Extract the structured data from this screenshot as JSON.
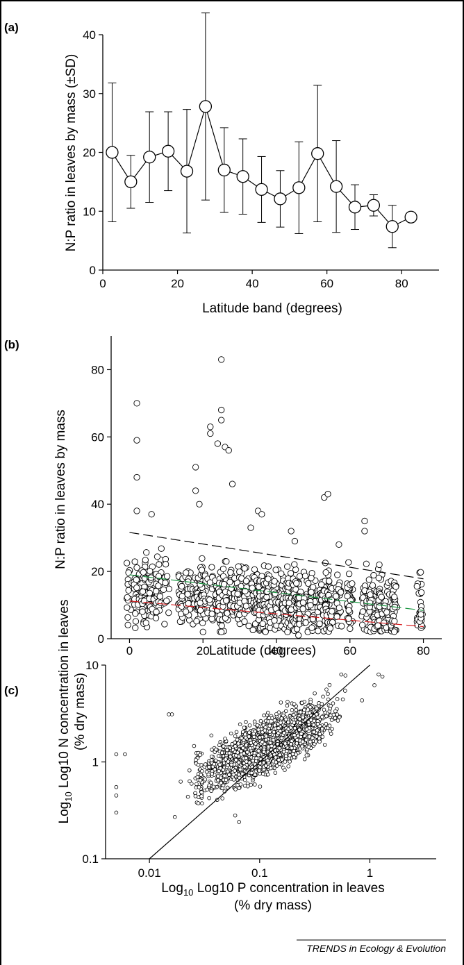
{
  "source": "TRENDS in Ecology & Evolution",
  "chart_data": [
    {
      "panel": "(a)",
      "type": "line",
      "xlabel": "Latitude band (degrees)",
      "ylabel": "N:P ratio in leaves by mass (±SD)",
      "xlim": [
        0,
        90
      ],
      "ylim": [
        0,
        40
      ],
      "xticks": [
        0,
        20,
        40,
        60,
        80
      ],
      "yticks": [
        0,
        10,
        20,
        30,
        40
      ],
      "x": [
        2.5,
        7.5,
        12.5,
        17.5,
        22.5,
        27.5,
        32.5,
        37.5,
        42.5,
        47.5,
        52.5,
        57.5,
        62.5,
        67.5,
        72.5,
        77.5,
        82.5
      ],
      "y": [
        20.0,
        15.0,
        19.2,
        20.2,
        16.8,
        27.8,
        17.0,
        15.9,
        13.7,
        12.1,
        14.0,
        19.8,
        14.2,
        10.7,
        11.0,
        7.4,
        9.0
      ],
      "sd": [
        11.8,
        4.5,
        7.7,
        6.7,
        10.5,
        15.9,
        7.2,
        6.4,
        5.6,
        4.8,
        7.8,
        11.6,
        7.8,
        3.8,
        1.8,
        3.6,
        0
      ]
    },
    {
      "panel": "(b)",
      "type": "scatter",
      "xlabel": "Latitude (degrees)",
      "ylabel": "N:P ratio in leaves by mass",
      "xlim": [
        -5,
        85
      ],
      "ylim": [
        0,
        90
      ],
      "xticks": [
        0,
        20,
        40,
        60,
        80
      ],
      "yticks": [
        0,
        20,
        40,
        60,
        80
      ],
      "cluster_latitudes": [
        0,
        2,
        4,
        6,
        8,
        10,
        14,
        16,
        18,
        19,
        20,
        22,
        24,
        25,
        26,
        28,
        30,
        32,
        34,
        35,
        36,
        37,
        38,
        40,
        42,
        43,
        44,
        45,
        46,
        48,
        50,
        52,
        53,
        54,
        55,
        57,
        60,
        64,
        66,
        68,
        70,
        72,
        79
      ],
      "outliers": [
        [
          2,
          70
        ],
        [
          2,
          59
        ],
        [
          2,
          48
        ],
        [
          2,
          38
        ],
        [
          6,
          37
        ],
        [
          18,
          51
        ],
        [
          18,
          44
        ],
        [
          19,
          40
        ],
        [
          22,
          63
        ],
        [
          22,
          61
        ],
        [
          24,
          58
        ],
        [
          25,
          68
        ],
        [
          25,
          65
        ],
        [
          25,
          83
        ],
        [
          26,
          57
        ],
        [
          27,
          56
        ],
        [
          28,
          46
        ],
        [
          33,
          33
        ],
        [
          35,
          38
        ],
        [
          36,
          37
        ],
        [
          44,
          32
        ],
        [
          45,
          29
        ],
        [
          53,
          42
        ],
        [
          54,
          43
        ],
        [
          57,
          28
        ],
        [
          64,
          35
        ],
        [
          64,
          32
        ],
        [
          68,
          22
        ],
        [
          43,
          2
        ],
        [
          25,
          2
        ],
        [
          20,
          2
        ],
        [
          46,
          1
        ]
      ],
      "regression_lines": [
        {
          "name": "upper",
          "color": "#000000",
          "x": [
            0,
            80
          ],
          "y": [
            31.6,
            17.8
          ]
        },
        {
          "name": "median",
          "color": "#1a9641",
          "x": [
            0,
            80
          ],
          "y": [
            19.0,
            8.4
          ]
        },
        {
          "name": "lower",
          "color": "#d7191c",
          "x": [
            0,
            80
          ],
          "y": [
            11.2,
            3.6
          ]
        }
      ]
    },
    {
      "panel": "(c)",
      "type": "scatter",
      "xlabel": "Log10 P concentration in leaves",
      "xlabel_sub": "(% dry mass)",
      "ylabel": "Log10 N concentration in leaves",
      "ylabel_sub": "(% dry mass)",
      "log_scale": true,
      "xlim": [
        0.004,
        4
      ],
      "ylim": [
        0.1,
        10
      ],
      "xticks": [
        0.01,
        0.1,
        1
      ],
      "xtick_labels": [
        "0.01",
        "0.1",
        "1"
      ],
      "yticks": [
        0.1,
        1,
        10
      ],
      "ytick_labels": [
        "0.1",
        "1",
        "10"
      ],
      "reference_line": {
        "x": [
          0.01,
          1
        ],
        "y": [
          0.1,
          10
        ]
      },
      "cloud": {
        "centre_p": 0.12,
        "centre_n": 1.5,
        "slope": 0.52
      },
      "outliers": [
        [
          0.005,
          0.3
        ],
        [
          0.005,
          0.45
        ],
        [
          0.005,
          0.55
        ],
        [
          0.006,
          1.2
        ],
        [
          0.005,
          1.2
        ],
        [
          0.017,
          0.27
        ],
        [
          0.06,
          0.28
        ],
        [
          0.065,
          0.24
        ],
        [
          0.016,
          3.1
        ],
        [
          0.015,
          3.1
        ],
        [
          0.55,
          8.0
        ],
        [
          0.6,
          7.8
        ],
        [
          1.2,
          8.0
        ],
        [
          1.3,
          7.6
        ],
        [
          1.1,
          6.2
        ]
      ]
    }
  ]
}
